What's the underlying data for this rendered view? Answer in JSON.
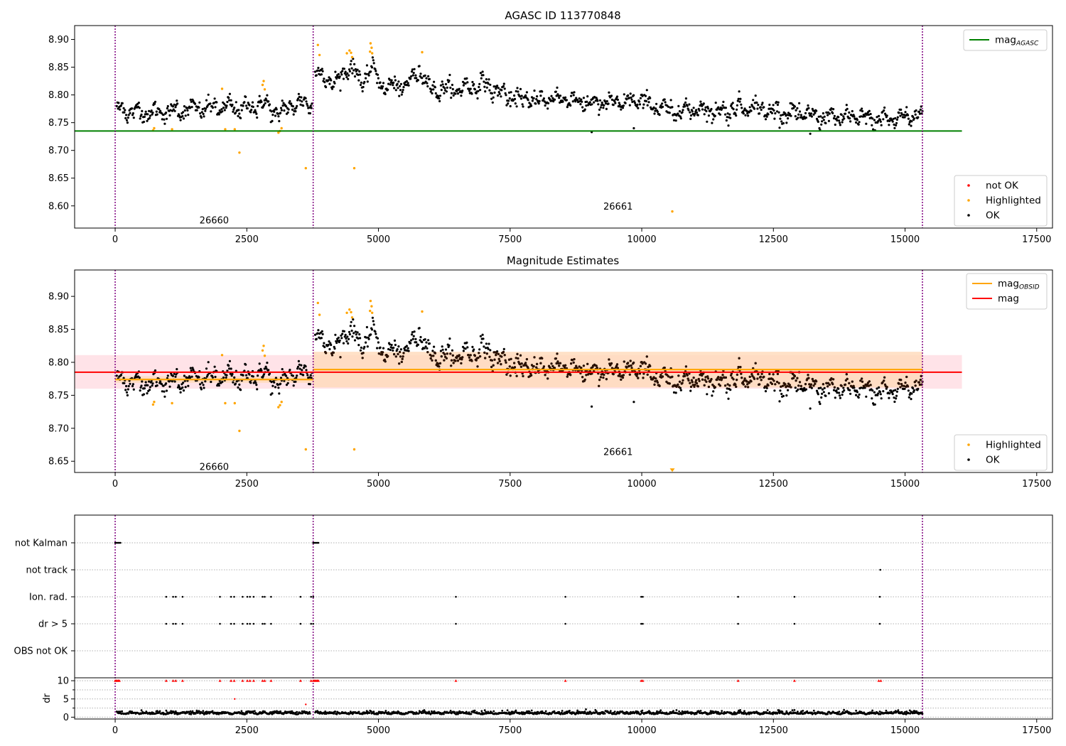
{
  "figure": {
    "colors": {
      "ok": "#000000",
      "highlighted": "#ffa500",
      "not_ok": "#ff0000",
      "mag_agasc": "#008000",
      "mag_obsid": "#ffa500",
      "mag": "#ff0000",
      "obs_boundary": "#800080",
      "band_mag": "#ffc0cb",
      "band_obsid": "#ffdab9"
    }
  },
  "chart_data": [
    {
      "type": "scatter",
      "title": "AGASC ID 113770848",
      "xlabel": "",
      "ylabel": "",
      "xlim": [
        -770,
        17800
      ],
      "ylim": [
        8.56,
        8.925
      ],
      "xticks": [
        "0",
        "2500",
        "5000",
        "7500",
        "10000",
        "12500",
        "15000",
        "17500"
      ],
      "yticks": [
        "8.60",
        "8.65",
        "8.70",
        "8.75",
        "8.80",
        "8.85",
        "8.90"
      ],
      "obs_boundaries": [
        0,
        3760,
        15330
      ],
      "obsid_labels": [
        {
          "text": "26660",
          "x": 1880,
          "y": 8.575
        },
        {
          "text": "26661",
          "x": 9550,
          "y": 8.6
        }
      ],
      "hlines": [
        {
          "name": "mag_AGASC",
          "y": 8.735,
          "x": [
            -770,
            16080
          ]
        }
      ],
      "legend_top": {
        "placement": "top-right",
        "entries": [
          {
            "key": "mag_agasc",
            "label": "mag",
            "sub": "AGASC"
          }
        ]
      },
      "legend_bottom": {
        "placement": "lower-right",
        "entries": [
          {
            "key": "not_ok",
            "label": "not OK"
          },
          {
            "key": "highlighted",
            "label": "Highlighted"
          },
          {
            "key": "ok",
            "label": "OK"
          }
        ]
      },
      "series": [
        {
          "name": "OK",
          "trend": [
            [
              0,
              8.775
            ],
            [
              500,
              8.768
            ],
            [
              1000,
              8.77
            ],
            [
              1500,
              8.775
            ],
            [
              2000,
              8.778
            ],
            [
              2500,
              8.776
            ],
            [
              2800,
              8.785
            ],
            [
              3100,
              8.765
            ],
            [
              3400,
              8.785
            ],
            [
              3750,
              8.785
            ],
            [
              3800,
              8.845
            ],
            [
              4000,
              8.83
            ],
            [
              4200,
              8.82
            ],
            [
              4450,
              8.855
            ],
            [
              4700,
              8.82
            ],
            [
              4850,
              8.85
            ],
            [
              5100,
              8.815
            ],
            [
              5500,
              8.815
            ],
            [
              5800,
              8.845
            ],
            [
              6000,
              8.81
            ],
            [
              6500,
              8.81
            ],
            [
              7000,
              8.82
            ],
            [
              7500,
              8.795
            ],
            [
              8000,
              8.79
            ],
            [
              8500,
              8.795
            ],
            [
              9000,
              8.785
            ],
            [
              9500,
              8.785
            ],
            [
              10000,
              8.79
            ],
            [
              10500,
              8.77
            ],
            [
              11000,
              8.775
            ],
            [
              11500,
              8.77
            ],
            [
              12000,
              8.78
            ],
            [
              12500,
              8.77
            ],
            [
              13000,
              8.765
            ],
            [
              13500,
              8.76
            ],
            [
              14000,
              8.76
            ],
            [
              14500,
              8.755
            ],
            [
              15000,
              8.76
            ],
            [
              15330,
              8.765
            ]
          ],
          "scatter": 0.012
        },
        {
          "name": "Highlighted",
          "points": [
            [
              720,
              8.736
            ],
            [
              740,
              8.74
            ],
            [
              1080,
              8.738
            ],
            [
              2030,
              8.811
            ],
            [
              2090,
              8.738
            ],
            [
              2270,
              8.738
            ],
            [
              2360,
              8.696
            ],
            [
              2800,
              8.818
            ],
            [
              2820,
              8.825
            ],
            [
              2840,
              8.81
            ],
            [
              3100,
              8.732
            ],
            [
              3130,
              8.735
            ],
            [
              3160,
              8.74
            ],
            [
              3620,
              8.668
            ],
            [
              3850,
              8.89
            ],
            [
              3880,
              8.872
            ],
            [
              4400,
              8.875
            ],
            [
              4450,
              8.88
            ],
            [
              4480,
              8.876
            ],
            [
              4500,
              8.868
            ],
            [
              4540,
              8.668
            ],
            [
              4850,
              8.893
            ],
            [
              4870,
              8.885
            ],
            [
              4880,
              8.875
            ],
            [
              4840,
              8.878
            ],
            [
              5830,
              8.877
            ],
            [
              10580,
              8.59
            ]
          ]
        },
        {
          "name": "OK outliers",
          "points": [
            [
              9050,
              8.733
            ],
            [
              9850,
              8.74
            ],
            [
              13200,
              8.73
            ]
          ]
        }
      ]
    },
    {
      "type": "scatter",
      "title": "Magnitude Estimates",
      "xlabel": "",
      "ylabel": "",
      "xlim": [
        -770,
        17800
      ],
      "ylim": [
        8.633,
        8.94
      ],
      "xticks": [
        "0",
        "2500",
        "5000",
        "7500",
        "10000",
        "12500",
        "15000",
        "17500"
      ],
      "yticks": [
        "8.65",
        "8.70",
        "8.75",
        "8.80",
        "8.85",
        "8.90"
      ],
      "obs_boundaries": [
        0,
        3760,
        15330
      ],
      "obsid_labels": [
        {
          "text": "26660",
          "x": 1880,
          "y": 8.642
        },
        {
          "text": "26661",
          "x": 9550,
          "y": 8.665
        }
      ],
      "hlines": [
        {
          "name": "mag",
          "y": 8.785,
          "x": [
            -770,
            16080
          ],
          "band": [
            8.76,
            8.811
          ]
        },
        {
          "name": "mag_OBSID_26660",
          "y": 8.774,
          "x": [
            0,
            3760
          ],
          "band": [
            8.769,
            8.779
          ]
        },
        {
          "name": "mag_OBSID_26661",
          "y": 8.789,
          "x": [
            3760,
            15330
          ],
          "band": [
            8.762,
            8.816
          ]
        }
      ],
      "legend_top": {
        "placement": "top-right",
        "entries": [
          {
            "key": "mag_obsid",
            "label": "mag",
            "sub": "OBSID"
          },
          {
            "key": "mag",
            "label": "mag",
            "sub": ""
          }
        ]
      },
      "legend_bottom": {
        "placement": "lower-right",
        "entries": [
          {
            "key": "highlighted",
            "label": "Highlighted"
          },
          {
            "key": "ok",
            "label": "OK"
          }
        ]
      },
      "series": [
        {
          "name": "OK",
          "same_as_panel": 0
        },
        {
          "name": "Highlighted",
          "same_as_panel": 0,
          "clipped_marker": [
            10580,
            8.636
          ]
        }
      ]
    },
    {
      "type": "scatter",
      "title": "",
      "xlabel": "",
      "xlim": [
        -770,
        17800
      ],
      "xticks": [
        "0",
        "2500",
        "5000",
        "7500",
        "10000",
        "12500",
        "15000",
        "17500"
      ],
      "flag_labels": [
        "not Kalman",
        "not track",
        "Ion. rad.",
        "dr > 5",
        "OBS not OK"
      ],
      "obs_boundaries": [
        0,
        3760,
        15330
      ],
      "flags": {
        "not Kalman": [
          0,
          20,
          40,
          60,
          80,
          100,
          3760,
          3780,
          3800,
          3820,
          3840,
          3860
        ],
        "not track": [
          14530
        ],
        "Ion. rad.": [
          970,
          1100,
          1150,
          1280,
          1990,
          2200,
          2260,
          2420,
          2510,
          2560,
          2630,
          2800,
          2840,
          2960,
          3520,
          3720,
          3760,
          6470,
          8550,
          9990,
          10020,
          11830,
          12900,
          14520
        ],
        "dr > 5": [
          970,
          1100,
          1150,
          1280,
          1990,
          2200,
          2260,
          2420,
          2510,
          2560,
          2630,
          2800,
          2840,
          2960,
          3520,
          3720,
          3760,
          6470,
          8550,
          9990,
          10020,
          11830,
          12900,
          14520
        ],
        "OBS not OK": []
      },
      "dr_panel": {
        "ylabel": "dr",
        "ylim": [
          -0.5,
          10.8
        ],
        "yticks": [
          "0",
          "5",
          "10"
        ],
        "capped_value": 10,
        "capped_points": [
          0,
          20,
          40,
          60,
          80,
          970,
          1100,
          1150,
          1280,
          1990,
          2200,
          2260,
          2420,
          2510,
          2560,
          2630,
          2800,
          2840,
          2960,
          3520,
          3720,
          3760,
          3780,
          3800,
          3820,
          3840,
          3860,
          6470,
          8550,
          9990,
          10020,
          11830,
          12900,
          14500,
          14540
        ],
        "outliers": [
          [
            2270,
            5.0
          ],
          [
            3620,
            3.5
          ]
        ],
        "baseline": 0.9
      }
    }
  ]
}
